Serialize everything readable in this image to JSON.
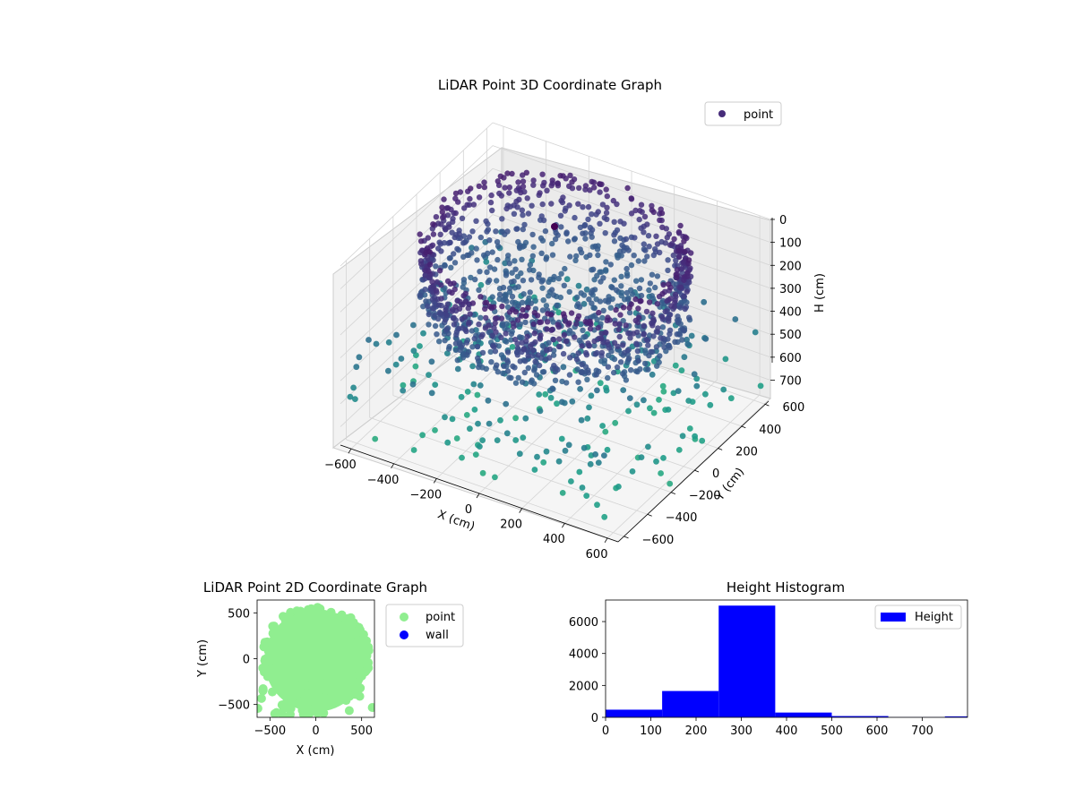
{
  "chart_data": [
    {
      "type": "scatter",
      "projection": "3d",
      "title": "LiDAR Point 3D Coordinate Graph",
      "xlabel": "X (cm)",
      "ylabel": "Y (cm)",
      "zlabel": "H (cm)",
      "x_ticks": [
        "−600",
        "−400",
        "−200",
        "0",
        "200",
        "400",
        "600"
      ],
      "y_ticks": [
        "−600",
        "−400",
        "−200",
        "0",
        "200",
        "400",
        "600"
      ],
      "z_ticks": [
        "0",
        "100",
        "200",
        "300",
        "400",
        "500",
        "600",
        "700"
      ],
      "xlim": [
        -650,
        650
      ],
      "ylim": [
        -650,
        650
      ],
      "zlim": [
        780,
        0
      ],
      "z_inverted": true,
      "grid": true,
      "legend": {
        "position": "top-right",
        "entries": [
          {
            "label": "point",
            "color": "#472c7a"
          }
        ]
      },
      "colormap": "viridis",
      "series": [
        {
          "name": "point",
          "shape": "bowl-shaped wall ring with scattered floor points",
          "wall_radius_cm": 560,
          "wall_height_range_cm": [
            0,
            320
          ],
          "samples": [
            {
              "x": 0,
              "y": 0,
              "h": 300
            },
            {
              "x": 500,
              "y": 250,
              "h": 120
            },
            {
              "x": -500,
              "y": 250,
              "h": 150
            },
            {
              "x": 300,
              "y": -480,
              "h": 60
            },
            {
              "x": -300,
              "y": -480,
              "h": 80
            },
            {
              "x": 0,
              "y": 560,
              "h": 40
            },
            {
              "x": -50,
              "y": 300,
              "h": 10
            },
            {
              "x": 200,
              "y": -200,
              "h": 420
            },
            {
              "x": -200,
              "y": -300,
              "h": 450
            },
            {
              "x": -600,
              "y": -600,
              "h": 560
            },
            {
              "x": 600,
              "y": 600,
              "h": 500
            },
            {
              "x": 400,
              "y": -600,
              "h": 640
            },
            {
              "x": -650,
              "y": 200,
              "h": 700
            },
            {
              "x": 650,
              "y": -300,
              "h": 620
            }
          ]
        }
      ]
    },
    {
      "type": "scatter",
      "title": "LiDAR Point 2D Coordinate Graph",
      "xlabel": "X (cm)",
      "ylabel": "Y (cm)",
      "x_ticks": [
        "−500",
        "0",
        "500"
      ],
      "y_ticks": [
        "−500",
        "0",
        "500"
      ],
      "xlim": [
        -640,
        640
      ],
      "ylim": [
        -640,
        640
      ],
      "grid": false,
      "legend": {
        "position": "outside-right",
        "entries": [
          {
            "label": "point",
            "color": "#90ee90"
          },
          {
            "label": "wall",
            "color": "#0000ff"
          }
        ]
      },
      "series": [
        {
          "name": "point",
          "color": "#90ee90",
          "fill": "disk with ragged edges",
          "radius_cm": 560
        },
        {
          "name": "wall",
          "color": "#0000ff",
          "points": []
        }
      ]
    },
    {
      "type": "bar",
      "histogram": true,
      "title": "Height Histogram",
      "xlabel": "",
      "ylabel": "",
      "bin_edges": [
        0,
        125,
        250,
        375,
        500,
        625,
        750,
        800
      ],
      "values": [
        480,
        1650,
        7000,
        300,
        80,
        10,
        60
      ],
      "xlim": [
        0,
        800
      ],
      "ylim": [
        0,
        7350
      ],
      "x_ticks": [
        "0",
        "100",
        "200",
        "300",
        "400",
        "500",
        "600",
        "700"
      ],
      "y_ticks": [
        "0",
        "2000",
        "4000",
        "6000"
      ],
      "color": "#0000ff",
      "grid": false,
      "legend": {
        "position": "top-right",
        "entries": [
          {
            "label": "Height",
            "color": "#0000ff"
          }
        ]
      }
    }
  ]
}
